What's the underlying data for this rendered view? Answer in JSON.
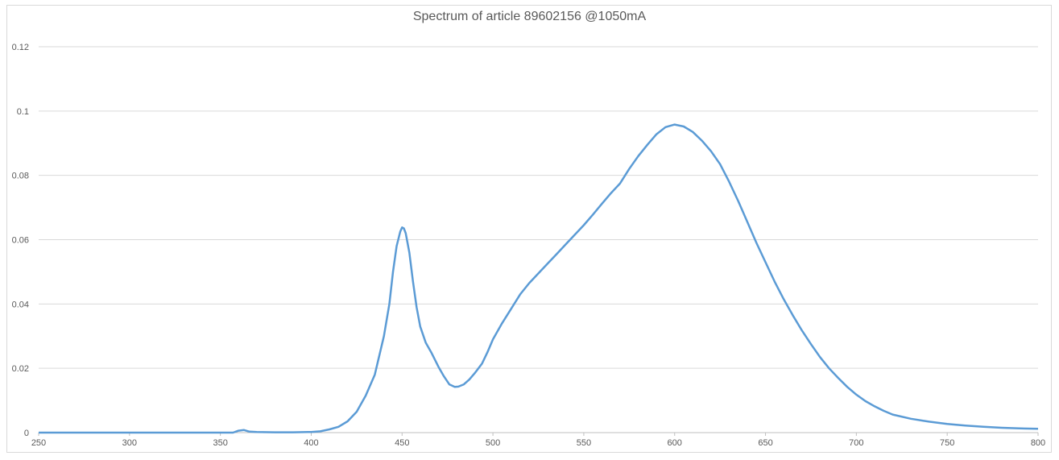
{
  "chart_data": {
    "type": "line",
    "title": "Spectrum of article 89602156   @1050mA",
    "xlabel": "",
    "ylabel": "",
    "xlim": [
      250,
      800
    ],
    "ylim": [
      0,
      0.12
    ],
    "grid": "horizontal",
    "legend": "none",
    "line_color": "#5b9bd5",
    "x_ticks": [
      "250",
      "300",
      "350",
      "400",
      "450",
      "500",
      "550",
      "600",
      "650",
      "700",
      "750",
      "800"
    ],
    "y_ticks": [
      "0",
      "0.02",
      "0.04",
      "0.06",
      "0.08",
      "0.1",
      "0.12"
    ],
    "series": [
      {
        "x": [
          250,
          300,
          350,
          357,
          360,
          363,
          366,
          370,
          380,
          390,
          400,
          405,
          410,
          415,
          420,
          425,
          430,
          435,
          440,
          443,
          445,
          447,
          449,
          450,
          451,
          452,
          454,
          456,
          458,
          460,
          463,
          466,
          470,
          473,
          476,
          479,
          481,
          484,
          487,
          490,
          494,
          497,
          500,
          505,
          510,
          515,
          520,
          525,
          530,
          535,
          540,
          545,
          550,
          555,
          560,
          565,
          570,
          575,
          580,
          585,
          590,
          595,
          600,
          605,
          610,
          615,
          620,
          625,
          630,
          635,
          640,
          645,
          650,
          655,
          660,
          665,
          670,
          675,
          680,
          685,
          690,
          695,
          700,
          705,
          710,
          715,
          720,
          730,
          740,
          750,
          760,
          770,
          780,
          790,
          800
        ],
        "y": [
          0,
          0,
          0,
          0,
          0.0006,
          0.0008,
          0.0003,
          0.0002,
          0.0001,
          0.0001,
          0.0002,
          0.0004,
          0.001,
          0.0018,
          0.0035,
          0.0065,
          0.0115,
          0.018,
          0.03,
          0.04,
          0.05,
          0.058,
          0.0625,
          0.0638,
          0.0635,
          0.062,
          0.056,
          0.047,
          0.039,
          0.033,
          0.028,
          0.025,
          0.0205,
          0.0175,
          0.015,
          0.0142,
          0.0143,
          0.015,
          0.0165,
          0.0185,
          0.0215,
          0.025,
          0.029,
          0.034,
          0.0385,
          0.043,
          0.0465,
          0.0495,
          0.0525,
          0.0555,
          0.0585,
          0.0615,
          0.0645,
          0.0678,
          0.0712,
          0.0745,
          0.0775,
          0.082,
          0.086,
          0.0895,
          0.0928,
          0.095,
          0.0958,
          0.0952,
          0.0935,
          0.0908,
          0.0875,
          0.0835,
          0.078,
          0.072,
          0.0655,
          0.059,
          0.053,
          0.047,
          0.0415,
          0.0365,
          0.0318,
          0.0275,
          0.0235,
          0.02,
          0.017,
          0.0142,
          0.0118,
          0.0098,
          0.0082,
          0.0068,
          0.0056,
          0.0043,
          0.0034,
          0.0027,
          0.0022,
          0.0018,
          0.0015,
          0.0013,
          0.0012
        ]
      }
    ]
  }
}
